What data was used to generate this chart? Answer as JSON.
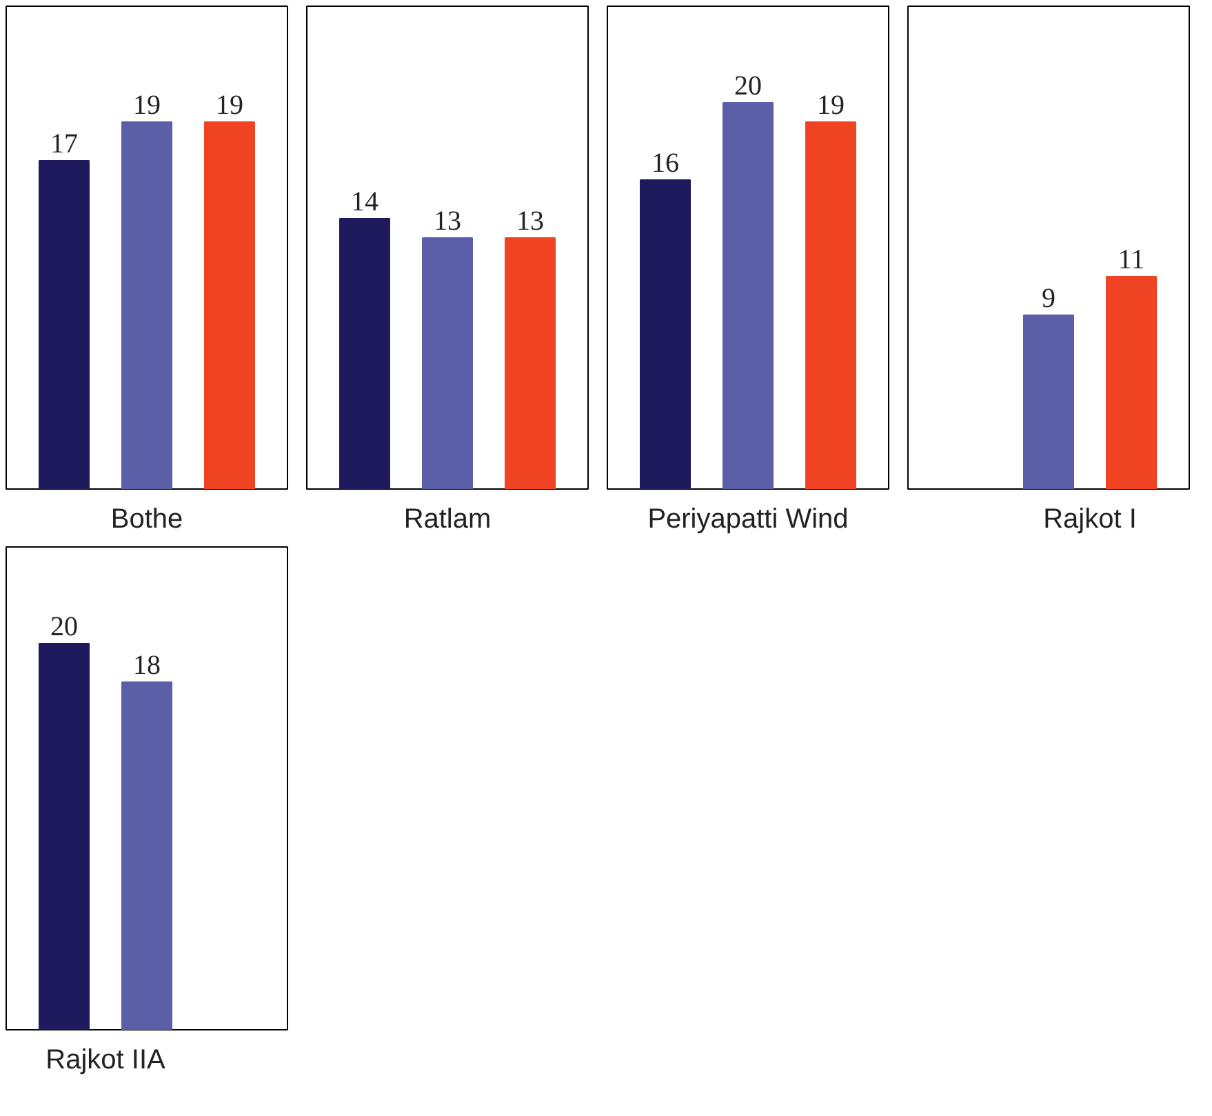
{
  "chart_data": [
    {
      "type": "bar",
      "categories": [
        "Bothe"
      ],
      "data_labels": true,
      "series": [
        {
          "color": "#1f1a5e",
          "values": [
            17
          ]
        },
        {
          "color": "#5b5fa8",
          "values": [
            19
          ]
        },
        {
          "color": "#f04323",
          "values": [
            19
          ]
        }
      ]
    },
    {
      "type": "bar",
      "categories": [
        "Ratlam"
      ],
      "data_labels": true,
      "series": [
        {
          "color": "#1f1a5e",
          "values": [
            14
          ]
        },
        {
          "color": "#5b5fa8",
          "values": [
            13
          ]
        },
        {
          "color": "#f04323",
          "values": [
            13
          ]
        }
      ]
    },
    {
      "type": "bar",
      "categories": [
        "Periyapatti Wind"
      ],
      "data_labels": true,
      "series": [
        {
          "color": "#1f1a5e",
          "values": [
            16
          ]
        },
        {
          "color": "#5b5fa8",
          "values": [
            20
          ]
        },
        {
          "color": "#f04323",
          "values": [
            19
          ]
        }
      ]
    },
    {
      "type": "bar",
      "categories": [
        "Rajkot I"
      ],
      "data_labels": true,
      "series": [
        {
          "color": "#1f1a5e",
          "values": [
            null
          ]
        },
        {
          "color": "#5b5fa8",
          "values": [
            9
          ]
        },
        {
          "color": "#f04323",
          "values": [
            11
          ]
        }
      ]
    },
    {
      "type": "bar",
      "categories": [
        "Rajkot IIA"
      ],
      "data_labels": true,
      "series": [
        {
          "color": "#1f1a5e",
          "values": [
            20
          ]
        },
        {
          "color": "#5b5fa8",
          "values": [
            18
          ]
        },
        {
          "color": "#f04323",
          "values": [
            null
          ]
        }
      ]
    }
  ]
}
